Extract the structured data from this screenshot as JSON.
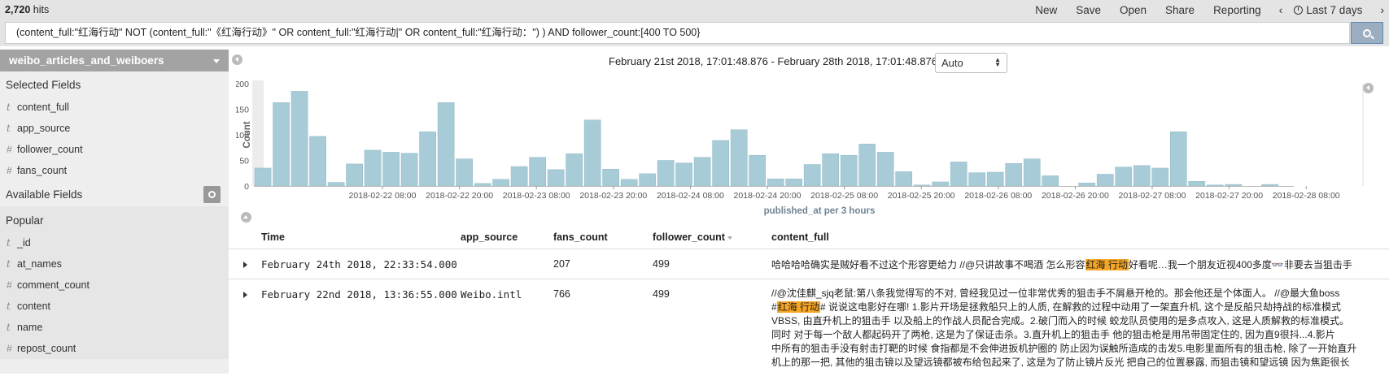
{
  "header": {
    "hits_count": "2,720",
    "hits_label": " hits",
    "menu": [
      "New",
      "Save",
      "Open",
      "Share",
      "Reporting"
    ],
    "prev_arrow": "‹",
    "next_arrow": "›",
    "time_range": "Last 7 days"
  },
  "search": {
    "query": "(content_full:\"红海行动\" NOT (content_full:\"《红海行动》\" OR content_full:\"红海行动|\" OR content_full:\"红海行动：\") ) AND follower_count:[400 TO 500}"
  },
  "sidebar": {
    "index_name": "weibo_articles_and_weiboers",
    "selected_title": "Selected Fields",
    "selected_fields": [
      {
        "type": "t",
        "name": "content_full"
      },
      {
        "type": "t",
        "name": "app_source"
      },
      {
        "type": "#",
        "name": "follower_count"
      },
      {
        "type": "#",
        "name": "fans_count"
      }
    ],
    "available_title": "Available Fields",
    "popular_title": "Popular",
    "popular_fields": [
      {
        "type": "t",
        "name": "_id"
      },
      {
        "type": "t",
        "name": "at_names"
      },
      {
        "type": "#",
        "name": "comment_count"
      },
      {
        "type": "t",
        "name": "content"
      },
      {
        "type": "t",
        "name": "name"
      },
      {
        "type": "#",
        "name": "repost_count"
      }
    ]
  },
  "histogram": {
    "date_range": "February 21st 2018, 17:01:48.876 - February 28th 2018, 17:01:48.876 —",
    "interval": "Auto"
  },
  "chart_data": {
    "type": "bar",
    "ylabel": "Count",
    "xlabel": "published_at per 3 hours",
    "ylim": [
      0,
      200
    ],
    "yticks": [
      0,
      50,
      100,
      150,
      200
    ],
    "xtick_labels": [
      "2018-02-22 08:00",
      "2018-02-22 20:00",
      "2018-02-23 08:00",
      "2018-02-23 20:00",
      "2018-02-24 08:00",
      "2018-02-24 20:00",
      "2018-02-25 08:00",
      "2018-02-25 20:00",
      "2018-02-26 08:00",
      "2018-02-26 20:00",
      "2018-02-27 08:00",
      "2018-02-27 20:00",
      "2018-02-28 08:00"
    ],
    "values": [
      35,
      163,
      185,
      97,
      7,
      43,
      70,
      66,
      64,
      106,
      163,
      53,
      5,
      13,
      38,
      56,
      32,
      63,
      129,
      33,
      13,
      24,
      50,
      45,
      56,
      89,
      110,
      60,
      14,
      14,
      42,
      63,
      60,
      82,
      66,
      28,
      2,
      8,
      47,
      26,
      27,
      44,
      53,
      20,
      0,
      6,
      23,
      37,
      40,
      35,
      106,
      9,
      2,
      3,
      0,
      3
    ]
  },
  "table": {
    "columns": [
      "Time",
      "app_source",
      "fans_count",
      "follower_count",
      "content_full"
    ],
    "rows": [
      {
        "time": "February 24th 2018, 22:33:54.000",
        "app_source": "",
        "fans_count": "207",
        "follower_count": "499",
        "content_lines": [
          {
            "pre": "哈哈哈哈确实是贼好看不过这个形容更给力 //@只讲故事不喝酒 怎么形容",
            "hl": "红海 行动",
            "post": "好看呢…我一个朋友近视400多度👓非要去当狙击手"
          }
        ]
      },
      {
        "time": "February 22nd 2018, 13:36:55.000",
        "app_source": "Weibo.intl",
        "fans_count": "766",
        "follower_count": "499",
        "content_lines": [
          {
            "pre": "//@沈佳麒_sjq老鼠:第八条我觉得写的不对, 曾经我见过一位非常优秀的狙击手不屑悬开枪的。那会他还是个体面人。 //@最大鱼boss",
            "hl": "",
            "post": ""
          },
          {
            "pre": "#",
            "hl": "红海 行动",
            "post": "# 说说这电影好在哪! 1.影片开场是拯救船只上的人质, 在解救的过程中动用了一架直升机, 这个是反船只劫持战的标准模式"
          },
          {
            "pre": "VBSS, 由直升机上的狙击手 以及船上的作战人员配合完成。2.破门而入的时候 蛟龙队员使用的是多点攻入, 这是人质解救的标准模式。",
            "hl": "",
            "post": ""
          },
          {
            "pre": "同时 对于每一个敌人都起码开了两枪, 这是为了保证击杀。3.直升机上的狙击手 他的狙击枪是用吊带固定住的, 因为直9很抖...4.影片",
            "hl": "",
            "post": ""
          },
          {
            "pre": "中所有的狙击手没有射击打靶的时候 食指都是不会伸进扳机护圈的 防止因为误触所造成的击发5.电影里面所有的狙击枪, 除了一开始直升",
            "hl": "",
            "post": ""
          },
          {
            "pre": "机上的那一把, 其他的狙击镜以及望远镜都被布给包起来了, 这是为了防止镜片反光 把自己的位置暴露, 而狙击镜和望远镜 因为焦距很长",
            "hl": "",
            "post": ""
          }
        ]
      }
    ]
  }
}
